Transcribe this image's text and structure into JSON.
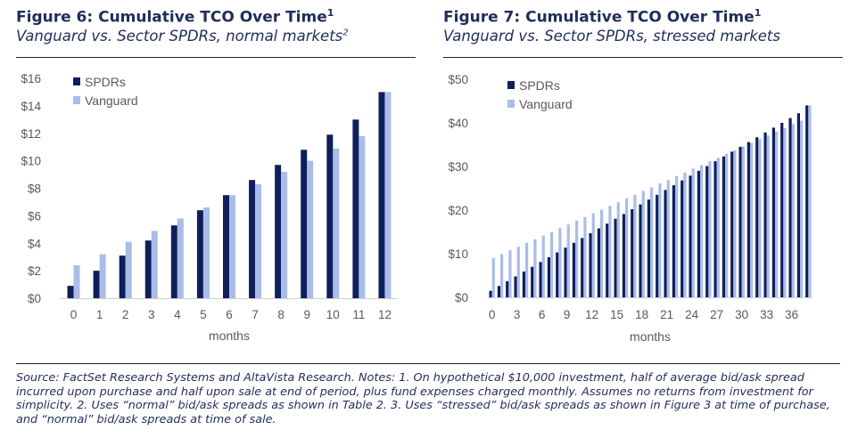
{
  "figures": [
    {
      "title": "Figure 6: Cumulative TCO Over Time",
      "title_sup": "1",
      "subtitle": "Vanguard vs. Sector SPDRs, normal markets",
      "subtitle_sup": "2"
    },
    {
      "title": "Figure 7: Cumulative TCO Over Time",
      "title_sup": "1",
      "subtitle": "Vanguard vs. Sector SPDRs, stressed markets",
      "subtitle_sup": ""
    }
  ],
  "source_note": "Source: FactSet Research Systems and AltaVista Research. Notes: 1. On hypothetical $10,000 investment, half of average bid/ask spread incurred upon purchase and half upon sale at end of period, plus fund expenses charged monthly. Assumes no returns from investment for simplicity. 2. Uses “normal” bid/ask spreads as shown in Table 2. 3. Uses “stressed” bid/ask spreads as shown in Figure 3 at time of purchase, and “normal” bid/ask spreads at time of sale.",
  "colors": {
    "spdrs": "#0e1f5b",
    "vanguard": "#aabde8"
  },
  "chart_data": [
    {
      "type": "bar",
      "xlabel": "months",
      "ylabel": "",
      "ylim": [
        0,
        16
      ],
      "yticks": [
        "$0",
        "$2",
        "$4",
        "$6",
        "$8",
        "$10",
        "$12",
        "$14",
        "$16"
      ],
      "ytick_values": [
        0,
        2,
        4,
        6,
        8,
        10,
        12,
        14,
        16
      ],
      "categories": [
        "0",
        "1",
        "2",
        "3",
        "4",
        "5",
        "6",
        "7",
        "8",
        "9",
        "10",
        "11",
        "12"
      ],
      "legend": "top-left",
      "grid": false,
      "series": [
        {
          "name": "SPDRs",
          "values": [
            0.9,
            2.0,
            3.1,
            4.2,
            5.3,
            6.4,
            7.5,
            8.6,
            9.7,
            10.8,
            11.9,
            13.0,
            15.0
          ]
        },
        {
          "name": "Vanguard",
          "values": [
            2.4,
            3.2,
            4.1,
            4.9,
            5.8,
            6.6,
            7.5,
            8.3,
            9.2,
            10.0,
            10.9,
            11.8,
            15.0
          ]
        }
      ]
    },
    {
      "type": "bar",
      "xlabel": "months",
      "ylabel": "",
      "ylim": [
        0,
        50
      ],
      "yticks": [
        "$0",
        "$10",
        "$20",
        "$30",
        "$40",
        "$50"
      ],
      "ytick_values": [
        0,
        10,
        20,
        30,
        40,
        50
      ],
      "categories": [
        "0",
        "1",
        "2",
        "3",
        "4",
        "5",
        "6",
        "7",
        "8",
        "9",
        "10",
        "11",
        "12",
        "13",
        "14",
        "15",
        "16",
        "17",
        "18",
        "19",
        "20",
        "21",
        "22",
        "23",
        "24",
        "25",
        "26",
        "27",
        "28",
        "29",
        "30",
        "31",
        "32",
        "33",
        "34",
        "35",
        "36",
        "37",
        "38"
      ],
      "tick_labels": [
        "0",
        "3",
        "6",
        "9",
        "12",
        "15",
        "18",
        "21",
        "24",
        "27",
        "30",
        "33",
        "36"
      ],
      "legend": "top-left",
      "grid": false,
      "series": [
        {
          "name": "SPDRs",
          "values": [
            1.5,
            2.6,
            3.7,
            4.8,
            5.9,
            7.0,
            8.1,
            9.2,
            10.3,
            11.4,
            12.5,
            13.6,
            14.7,
            15.8,
            16.9,
            18.0,
            19.1,
            20.2,
            21.3,
            22.4,
            23.5,
            24.6,
            25.7,
            26.8,
            27.9,
            29.0,
            30.1,
            31.2,
            32.3,
            33.4,
            34.5,
            35.6,
            36.7,
            37.8,
            38.9,
            40.0,
            41.1,
            42.2,
            44.0
          ]
        },
        {
          "name": "Vanguard",
          "values": [
            9.0,
            9.9,
            10.8,
            11.6,
            12.5,
            13.3,
            14.2,
            15.0,
            15.9,
            16.7,
            17.6,
            18.4,
            19.3,
            20.1,
            21.0,
            21.8,
            22.7,
            23.5,
            24.4,
            25.2,
            26.1,
            26.9,
            27.8,
            28.6,
            29.5,
            30.3,
            31.2,
            32.0,
            32.9,
            33.7,
            34.6,
            35.4,
            36.3,
            37.1,
            38.0,
            38.8,
            39.7,
            40.5,
            44.0
          ]
        }
      ]
    }
  ]
}
